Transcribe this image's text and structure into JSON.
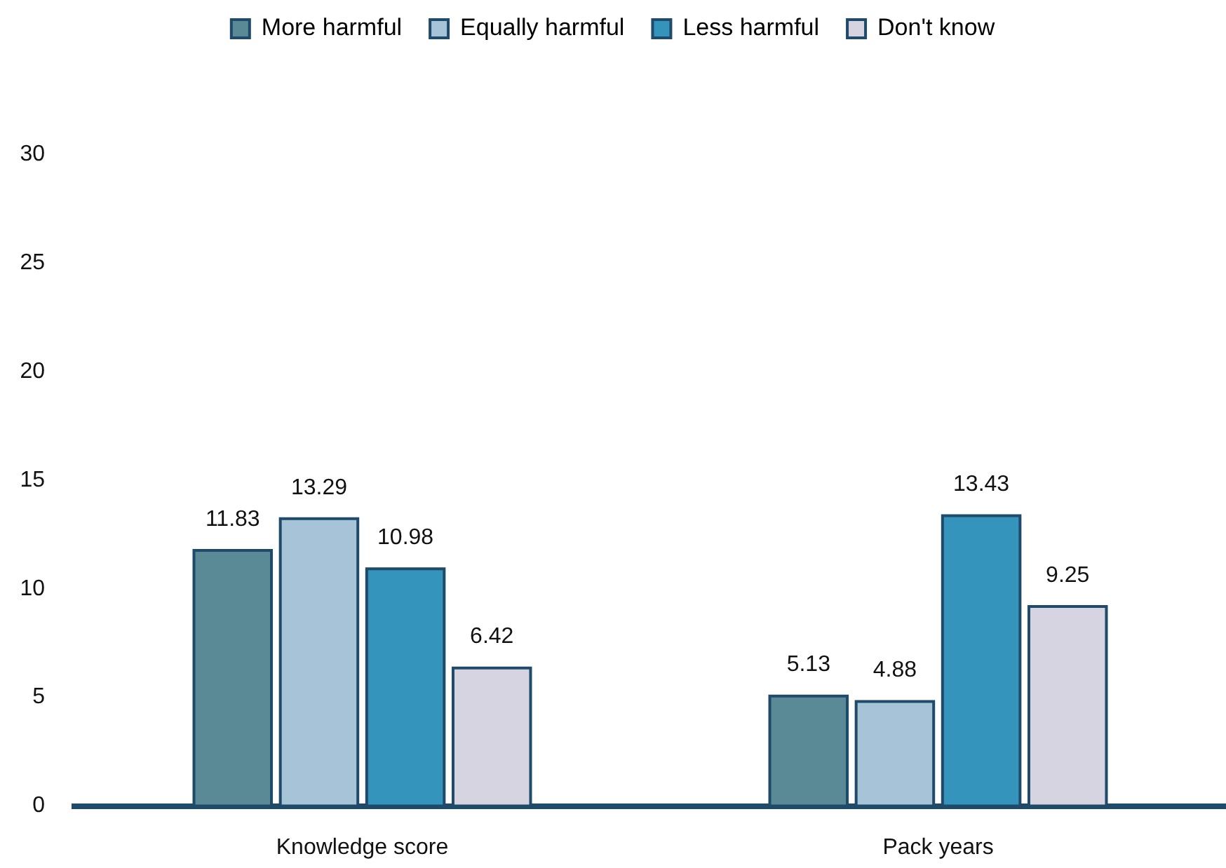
{
  "chart_data": {
    "type": "bar",
    "categories": [
      "Knowledge score",
      "Pack years"
    ],
    "series": [
      {
        "name": "More harmful",
        "color": "#5a8a96",
        "values": [
          11.83,
          5.13
        ]
      },
      {
        "name": "Equally harmful",
        "color": "#a6c3d7",
        "values": [
          13.29,
          4.88
        ]
      },
      {
        "name": "Less harmful",
        "color": "#3594bb",
        "values": [
          10.98,
          13.43
        ]
      },
      {
        "name": "Don't know",
        "color": "#d5d4e0",
        "values": [
          6.42,
          9.25
        ]
      }
    ],
    "ylim": [
      0,
      30
    ],
    "yticks": [
      0,
      5,
      10,
      15,
      20,
      25,
      30
    ],
    "grid": false,
    "legend": "top",
    "data_labels": true
  }
}
